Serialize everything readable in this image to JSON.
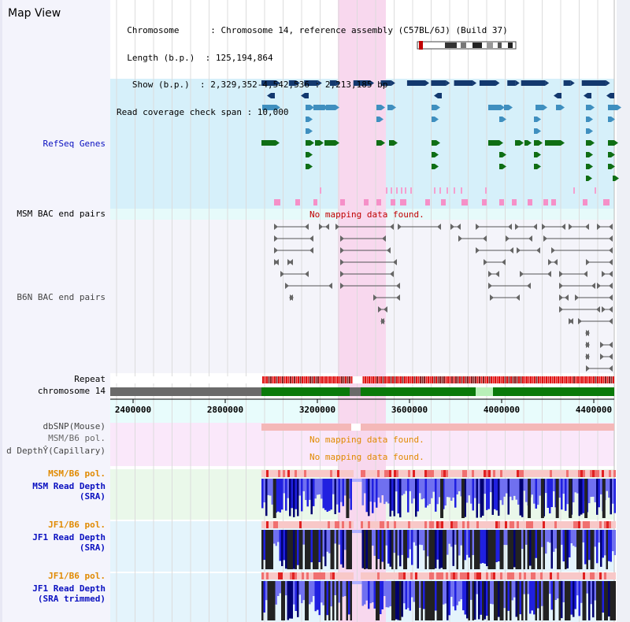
{
  "title": "Map View",
  "header": {
    "lines": [
      "  Chromosome      : Chromosome 14, reference assembly (C57BL/6J) (Build 37)",
      "  Length (b.p.)  : 125,194,864",
      "   Show (b.p.)  : 2,329,352-4,542,536 : 2,213,185 bp",
      "Read coverage check span : 10,000"
    ]
  },
  "tracks": {
    "refseq": "RefSeq Genes",
    "msm_bac": "MSM BAC end pairs",
    "msm_bac_msg": "No mapping data found.",
    "b6n_bac": "B6N BAC end pairs",
    "repeat": "Repeat",
    "chromosome": "chromosome 14",
    "dbsnp": "dbSNP(Mouse)",
    "msm_pol1": "MSM/B6 pol.",
    "read_depth_cap": "d DepthŶ(Capillary)",
    "no_data_1": "No mapping data found.",
    "no_data_2": "No mapping data found.",
    "msm_pol2": "MSM/B6 pol.",
    "msm_rd_1": "MSM Read Depth",
    "msm_rd_2": "(SRA)",
    "jf1_pol1": "JF1/B6 pol.",
    "jf1_rd_1": "JF1 Read Depth",
    "jf1_rd_2": "(SRA)",
    "jf1_pol2": "JF1/B6 pol.",
    "jf1_rdt_1": "JF1 Read Depth",
    "jf1_rdt_2": "(SRA trimmed)"
  },
  "axis": {
    "ticks": [
      "2400000",
      "2800000",
      "3200000",
      "3600000",
      "4000000",
      "4400000"
    ]
  },
  "colors": {
    "refseq_bg": "#d6f0fa",
    "highlight": "#f8d8ee",
    "gene_dark": "#13386e",
    "gene_mid": "#3f8fbf",
    "gene_green": "#0f6e14",
    "label_blue": "#0a10c0",
    "label_orange": "#e08a00",
    "msg_red": "#c00000",
    "msg_orange": "#e08a00"
  }
}
